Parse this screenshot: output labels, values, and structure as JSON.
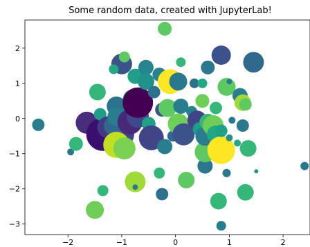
{
  "chart_data": {
    "type": "scatter",
    "title": "Some random data, created with JupyterLab!",
    "xlabel": "",
    "ylabel": "",
    "xlim": [
      -2.8,
      2.5
    ],
    "ylim": [
      -3.3,
      2.8
    ],
    "grid": false,
    "x_ticks": [
      -2,
      -1,
      0,
      1,
      2
    ],
    "y_ticks": [
      2,
      1,
      0,
      -1,
      -2,
      -3
    ],
    "colormap": "viridis",
    "points": [
      {
        "x": -2.55,
        "y": -0.18,
        "size": 9,
        "color": "#287d8e"
      },
      {
        "x": -1.95,
        "y": -0.95,
        "size": 5,
        "color": "#2a788e"
      },
      {
        "x": -1.85,
        "y": -0.72,
        "size": 10,
        "color": "#35b779"
      },
      {
        "x": -1.65,
        "y": -0.12,
        "size": 16,
        "color": "#472d7b"
      },
      {
        "x": -1.35,
        "y": -0.45,
        "size": 24,
        "color": "#3b0f70"
      },
      {
        "x": -1.5,
        "y": -2.6,
        "size": 13,
        "color": "#6ece58"
      },
      {
        "x": -1.35,
        "y": -2.05,
        "size": 8,
        "color": "#35b779"
      },
      {
        "x": -1.45,
        "y": 0.75,
        "size": 12,
        "color": "#35b779"
      },
      {
        "x": -1.4,
        "y": 0.12,
        "size": 9,
        "color": "#1f9e89"
      },
      {
        "x": -1.25,
        "y": -0.25,
        "size": 16,
        "color": "#443983"
      },
      {
        "x": -1.1,
        "y": -0.65,
        "size": 12,
        "color": "#21918c"
      },
      {
        "x": -1.1,
        "y": 0.35,
        "size": 14,
        "color": "#2c728e"
      },
      {
        "x": -1.0,
        "y": -0.45,
        "size": 18,
        "color": "#414487"
      },
      {
        "x": -1.15,
        "y": -0.2,
        "size": 14,
        "color": "#31688e"
      },
      {
        "x": -1.1,
        "y": -0.75,
        "size": 19,
        "color": "#c2df23"
      },
      {
        "x": -0.95,
        "y": -0.85,
        "size": 16,
        "color": "#7ad151"
      },
      {
        "x": -1.0,
        "y": 1.55,
        "size": 15,
        "color": "#3b528b"
      },
      {
        "x": -1.15,
        "y": 1.4,
        "size": 7,
        "color": "#22a884"
      },
      {
        "x": -0.95,
        "y": 1.75,
        "size": 8,
        "color": "#5ec962"
      },
      {
        "x": -1.1,
        "y": 0.05,
        "size": 13,
        "color": "#277f8e"
      },
      {
        "x": -0.85,
        "y": -0.1,
        "size": 18,
        "color": "#482878"
      },
      {
        "x": -0.8,
        "y": 0.55,
        "size": 14,
        "color": "#35b779"
      },
      {
        "x": -0.75,
        "y": 1.2,
        "size": 11,
        "color": "#1f9e89"
      },
      {
        "x": -0.7,
        "y": 0.05,
        "size": 16,
        "color": "#3e4989"
      },
      {
        "x": -0.7,
        "y": 0.45,
        "size": 22,
        "color": "#440154"
      },
      {
        "x": -0.75,
        "y": -1.8,
        "size": 15,
        "color": "#9fda3a"
      },
      {
        "x": -0.75,
        "y": -1.95,
        "size": 4,
        "color": "#2a788e"
      },
      {
        "x": -0.55,
        "y": 1.45,
        "size": 11,
        "color": "#25848e"
      },
      {
        "x": -0.55,
        "y": 1.05,
        "size": 12,
        "color": "#21918c"
      },
      {
        "x": -0.5,
        "y": -0.15,
        "size": 10,
        "color": "#1fa188"
      },
      {
        "x": -0.45,
        "y": -0.55,
        "size": 18,
        "color": "#414487"
      },
      {
        "x": -0.4,
        "y": 0.75,
        "size": 9,
        "color": "#2c728e"
      },
      {
        "x": -0.3,
        "y": 1.25,
        "size": 10,
        "color": "#25848e"
      },
      {
        "x": -0.3,
        "y": -1.55,
        "size": 8,
        "color": "#35b779"
      },
      {
        "x": -0.25,
        "y": -2.15,
        "size": 9,
        "color": "#2c728e"
      },
      {
        "x": -0.25,
        "y": 0.25,
        "size": 10,
        "color": "#3b528b"
      },
      {
        "x": -0.2,
        "y": -0.8,
        "size": 11,
        "color": "#287d8e"
      },
      {
        "x": -0.2,
        "y": 2.55,
        "size": 10,
        "color": "#5ec962"
      },
      {
        "x": -0.15,
        "y": 0.3,
        "size": 13,
        "color": "#5ec962"
      },
      {
        "x": -0.1,
        "y": 1.05,
        "size": 18,
        "color": "#fde725"
      },
      {
        "x": -0.05,
        "y": -0.5,
        "size": 8,
        "color": "#31688e"
      },
      {
        "x": 0.05,
        "y": 1.05,
        "size": 13,
        "color": "#2a788e"
      },
      {
        "x": 0.05,
        "y": -0.15,
        "size": 15,
        "color": "#6ece58"
      },
      {
        "x": 0.1,
        "y": 1.6,
        "size": 7,
        "color": "#35b779"
      },
      {
        "x": 0.1,
        "y": 0.35,
        "size": 11,
        "color": "#287d8e"
      },
      {
        "x": 0.15,
        "y": -0.45,
        "size": 16,
        "color": "#3b528b"
      },
      {
        "x": 0.2,
        "y": -1.75,
        "size": 12,
        "color": "#5ec962"
      },
      {
        "x": 0.3,
        "y": 0.2,
        "size": 8,
        "color": "#26828e"
      },
      {
        "x": 0.35,
        "y": 1.0,
        "size": 7,
        "color": "#2c728e"
      },
      {
        "x": 0.4,
        "y": -0.05,
        "size": 14,
        "color": "#414487"
      },
      {
        "x": 0.45,
        "y": -0.3,
        "size": 10,
        "color": "#1f9e89"
      },
      {
        "x": 0.5,
        "y": 0.5,
        "size": 10,
        "color": "#6ece58"
      },
      {
        "x": 0.5,
        "y": 1.0,
        "size": 7,
        "color": "#22a884"
      },
      {
        "x": 0.55,
        "y": -1.35,
        "size": 11,
        "color": "#2a788e"
      },
      {
        "x": 0.55,
        "y": -0.95,
        "size": 15,
        "color": "#5ec962"
      },
      {
        "x": 0.55,
        "y": -0.5,
        "size": 14,
        "color": "#287d8e"
      },
      {
        "x": 0.6,
        "y": -0.1,
        "size": 12,
        "color": "#35b779"
      },
      {
        "x": 0.6,
        "y": 1.45,
        "size": 10,
        "color": "#2a788e"
      },
      {
        "x": 0.7,
        "y": -0.2,
        "size": 15,
        "color": "#6ece58"
      },
      {
        "x": 0.75,
        "y": -0.45,
        "size": 13,
        "color": "#22a884"
      },
      {
        "x": 0.75,
        "y": 0.3,
        "size": 9,
        "color": "#35b779"
      },
      {
        "x": 0.8,
        "y": -2.35,
        "size": 12,
        "color": "#35b779"
      },
      {
        "x": 0.85,
        "y": 1.8,
        "size": 14,
        "color": "#3b528b"
      },
      {
        "x": 0.85,
        "y": -1.05,
        "size": 8,
        "color": "#31688e"
      },
      {
        "x": 0.85,
        "y": -0.9,
        "size": 20,
        "color": "#fde725"
      },
      {
        "x": 0.85,
        "y": -3.05,
        "size": 7,
        "color": "#287d8e"
      },
      {
        "x": 0.95,
        "y": -1.55,
        "size": 6,
        "color": "#2a788e"
      },
      {
        "x": 0.85,
        "y": -0.35,
        "size": 9,
        "color": "#1fa188"
      },
      {
        "x": 1.0,
        "y": -0.55,
        "size": 5,
        "color": "#21918c"
      },
      {
        "x": 0.95,
        "y": 0.9,
        "size": 13,
        "color": "#5ec962"
      },
      {
        "x": 1.0,
        "y": 1.05,
        "size": 4,
        "color": "#2a788e"
      },
      {
        "x": 1.05,
        "y": -0.05,
        "size": 5,
        "color": "#2a788e"
      },
      {
        "x": 1.15,
        "y": -0.7,
        "size": 5,
        "color": "#22a884"
      },
      {
        "x": 1.2,
        "y": 0.65,
        "size": 11,
        "color": "#287d8e"
      },
      {
        "x": 1.25,
        "y": 0.45,
        "size": 12,
        "color": "#9fda3a"
      },
      {
        "x": 1.25,
        "y": -0.2,
        "size": 9,
        "color": "#2a788e"
      },
      {
        "x": 1.3,
        "y": -2.1,
        "size": 12,
        "color": "#35b779"
      },
      {
        "x": 1.35,
        "y": -0.85,
        "size": 12,
        "color": "#35b779"
      },
      {
        "x": 1.3,
        "y": 0.4,
        "size": 9,
        "color": "#5ec962"
      },
      {
        "x": 1.45,
        "y": 1.6,
        "size": 15,
        "color": "#31688e"
      },
      {
        "x": 1.5,
        "y": -1.5,
        "size": 3,
        "color": "#21918c"
      },
      {
        "x": 2.4,
        "y": -1.35,
        "size": 6,
        "color": "#2a788e"
      }
    ]
  }
}
